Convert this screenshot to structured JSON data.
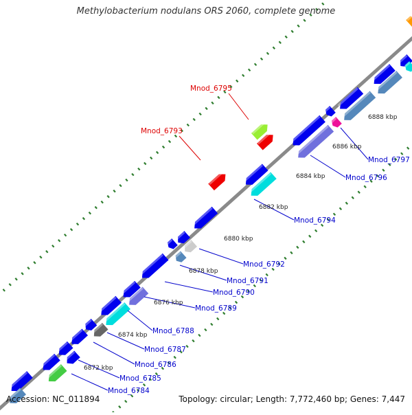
{
  "title": "Methylobacterium nodulans ORS 2060, complete genome",
  "footer": {
    "accession": "Accession: NC_011894",
    "topology": "Topology: circular; Length: 7,772,460 bp; Genes: 7,447"
  },
  "colors": {
    "backbone": "#8a8a8a",
    "tick": "#2e7d2e",
    "label_blue": "#0000cc",
    "label_red": "#dd0000",
    "gene_blue": "#0000ee",
    "gene_cyan": "#00dddd",
    "gene_slate": "#7070dd",
    "gene_red": "#ee0000",
    "gene_lime": "#99ee33",
    "gene_grey": "#666666",
    "gene_lightgrey": "#cccccc",
    "gene_steel": "#5588bb",
    "gene_magenta": "#ee1199",
    "gene_green": "#44cc44",
    "gene_orange": "#ff9900"
  },
  "scale_labels": [
    "6872 kbp",
    "6874 kbp",
    "6876 kbp",
    "6878 kbp",
    "6880 kbp",
    "6882 kbp",
    "6884 kbp",
    "6886 kbp",
    "6888 kbp"
  ],
  "gene_labels": [
    {
      "text": "Mnod_6784",
      "strand": "reverse"
    },
    {
      "text": "Mnod_6785",
      "strand": "reverse"
    },
    {
      "text": "Mnod_6786",
      "strand": "reverse"
    },
    {
      "text": "Mnod_6787",
      "strand": "reverse"
    },
    {
      "text": "Mnod_6788",
      "strand": "reverse"
    },
    {
      "text": "Mnod_6789",
      "strand": "reverse"
    },
    {
      "text": "Mnod_6790",
      "strand": "reverse"
    },
    {
      "text": "Mnod_6791",
      "strand": "reverse"
    },
    {
      "text": "Mnod_6792",
      "strand": "reverse"
    },
    {
      "text": "Mnod_6794",
      "strand": "reverse"
    },
    {
      "text": "Mnod_6796",
      "strand": "reverse"
    },
    {
      "text": "Mnod_6797",
      "strand": "reverse"
    },
    {
      "text": "Mnod_6793",
      "strand": "forward"
    },
    {
      "text": "Mnod_6795",
      "strand": "forward"
    }
  ]
}
